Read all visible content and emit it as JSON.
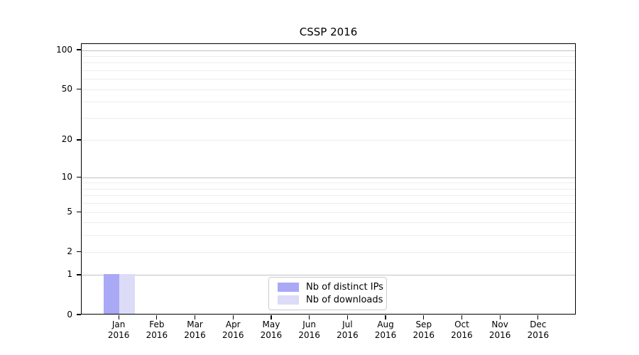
{
  "chart_data": {
    "type": "bar",
    "title": "CSSP 2016",
    "categories": [
      "Jan",
      "Feb",
      "Mar",
      "Apr",
      "May",
      "Jun",
      "Jul",
      "Aug",
      "Sep",
      "Oct",
      "Nov",
      "Dec"
    ],
    "category_year": "2016",
    "series": [
      {
        "name": "Nb of distinct IPs",
        "color": "#a9a9f5",
        "values": [
          1,
          0,
          0,
          0,
          0,
          0,
          0,
          0,
          0,
          0,
          0,
          0
        ]
      },
      {
        "name": "Nb of downloads",
        "color": "#dcdcf9",
        "values": [
          1,
          0,
          0,
          0,
          0,
          0,
          0,
          0,
          0,
          0,
          0,
          0
        ]
      }
    ],
    "y_axis": {
      "scale": "log1p",
      "max": 112,
      "ticks": [
        0,
        1,
        2,
        5,
        10,
        20,
        50,
        100
      ],
      "major_gridlines": [
        1,
        10,
        100
      ],
      "minor_gridlines": [
        2,
        3,
        4,
        5,
        6,
        7,
        8,
        9,
        20,
        30,
        40,
        50,
        60,
        70,
        80,
        90
      ]
    },
    "x_axis": {
      "tick_labels_two_lines": true
    },
    "legend": {
      "position": "bottom-center"
    },
    "grid": "horizontal-only",
    "colors": {
      "background": "#ffffff",
      "axis": "#000000",
      "text": "#000000",
      "major_grid": "#c2c2c2",
      "minor_grid": "#ededed",
      "legend_border": "#cccccc"
    }
  }
}
